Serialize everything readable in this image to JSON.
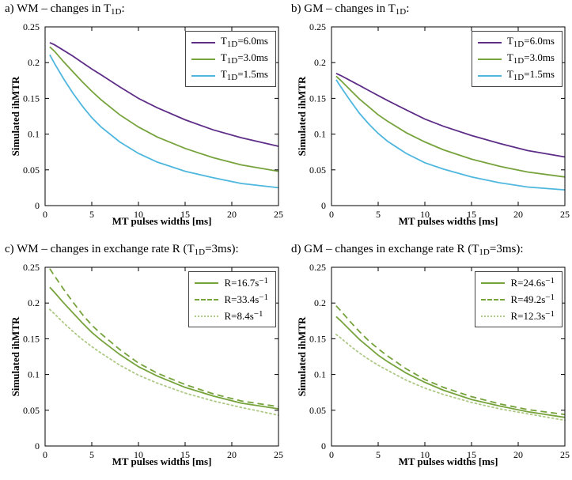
{
  "figure": {
    "background": "#ffffff",
    "axis_color": "#000000"
  },
  "chart_data": [
    {
      "id": "panel-a",
      "type": "line",
      "title": {
        "pre": "a) WM – changes in T",
        "sub": "1D",
        "post": ":"
      },
      "xlabel": "MT pulses widths [ms]",
      "ylabel": "Simulated ihMTR",
      "xlim": [
        0,
        25
      ],
      "ylim": [
        0,
        0.25
      ],
      "xticks": [
        0,
        5,
        10,
        15,
        20,
        25
      ],
      "xtick_labels": [
        "0",
        "5",
        "10",
        "15",
        "20",
        "25"
      ],
      "yticks": [
        0,
        0.05,
        0.1,
        0.15,
        0.2,
        0.25
      ],
      "ytick_labels": [
        "0",
        "0.05",
        "0.1",
        "0.15",
        "0.2",
        "0.25"
      ],
      "legend_position": "top-right",
      "grid": false,
      "x": [
        0.5,
        1,
        2,
        3,
        4,
        5,
        6,
        8,
        10,
        12,
        15,
        18,
        21,
        25
      ],
      "series": [
        {
          "label": {
            "pre": "T",
            "sub": "1D",
            "post": "=6.0ms"
          },
          "color": "#5e2d87",
          "style": "solid",
          "values": [
            0.228,
            0.225,
            0.217,
            0.209,
            0.2,
            0.191,
            0.183,
            0.166,
            0.15,
            0.137,
            0.12,
            0.106,
            0.095,
            0.083
          ]
        },
        {
          "label": {
            "pre": "T",
            "sub": "1D",
            "post": "=3.0ms"
          },
          "color": "#77a33d",
          "style": "solid",
          "values": [
            0.222,
            0.216,
            0.201,
            0.187,
            0.173,
            0.16,
            0.148,
            0.127,
            0.11,
            0.096,
            0.08,
            0.067,
            0.057,
            0.048
          ]
        },
        {
          "label": {
            "pre": "T",
            "sub": "1D",
            "post": "=1.5ms"
          },
          "color": "#4fb7de",
          "style": "solid",
          "values": [
            0.211,
            0.199,
            0.177,
            0.157,
            0.139,
            0.123,
            0.11,
            0.089,
            0.073,
            0.061,
            0.048,
            0.039,
            0.031,
            0.025
          ]
        }
      ]
    },
    {
      "id": "panel-b",
      "type": "line",
      "title": {
        "pre": "b) GM – changes in T",
        "sub": "1D",
        "post": ":"
      },
      "xlabel": "MT pulses widths [ms]",
      "ylabel": "Simulated ihMTR",
      "xlim": [
        0,
        25
      ],
      "ylim": [
        0,
        0.25
      ],
      "xticks": [
        0,
        5,
        10,
        15,
        20,
        25
      ],
      "xtick_labels": [
        "0",
        "5",
        "10",
        "15",
        "20",
        "25"
      ],
      "yticks": [
        0,
        0.05,
        0.1,
        0.15,
        0.2,
        0.25
      ],
      "ytick_labels": [
        "0",
        "0.05",
        "0.1",
        "0.15",
        "0.2",
        "0.25"
      ],
      "legend_position": "top-right",
      "grid": false,
      "x": [
        0.5,
        1,
        2,
        3,
        4,
        5,
        6,
        8,
        10,
        12,
        15,
        18,
        21,
        25
      ],
      "series": [
        {
          "label": {
            "pre": "T",
            "sub": "1D",
            "post": "=6.0ms"
          },
          "color": "#5e2d87",
          "style": "solid",
          "values": [
            0.185,
            0.182,
            0.175,
            0.168,
            0.161,
            0.154,
            0.147,
            0.134,
            0.121,
            0.111,
            0.098,
            0.087,
            0.077,
            0.068
          ]
        },
        {
          "label": {
            "pre": "T",
            "sub": "1D",
            "post": "=3.0ms"
          },
          "color": "#77a33d",
          "style": "solid",
          "values": [
            0.181,
            0.175,
            0.162,
            0.149,
            0.138,
            0.127,
            0.118,
            0.102,
            0.089,
            0.078,
            0.065,
            0.055,
            0.047,
            0.04
          ]
        },
        {
          "label": {
            "pre": "T",
            "sub": "1D",
            "post": "=1.5ms"
          },
          "color": "#4fb7de",
          "style": "solid",
          "values": [
            0.176,
            0.166,
            0.147,
            0.129,
            0.114,
            0.101,
            0.09,
            0.073,
            0.06,
            0.051,
            0.04,
            0.032,
            0.026,
            0.022
          ]
        }
      ]
    },
    {
      "id": "panel-c",
      "type": "line",
      "title": {
        "pre": "c) WM – changes in exchange rate R (T",
        "sub": "1D",
        "post": "=3ms):"
      },
      "xlabel": "MT pulses widths [ms]",
      "ylabel": "Simulated ihMTR",
      "xlim": [
        0,
        25
      ],
      "ylim": [
        0,
        0.25
      ],
      "xticks": [
        0,
        5,
        10,
        15,
        20,
        25
      ],
      "xtick_labels": [
        "0",
        "5",
        "10",
        "15",
        "20",
        "25"
      ],
      "yticks": [
        0,
        0.05,
        0.1,
        0.15,
        0.2,
        0.25
      ],
      "ytick_labels": [
        "0",
        "0.05",
        "0.1",
        "0.15",
        "0.2",
        "0.25"
      ],
      "legend_position": "top-right",
      "grid": false,
      "x": [
        0.5,
        1,
        2,
        3,
        4,
        5,
        6,
        8,
        10,
        12,
        15,
        18,
        21,
        25
      ],
      "series": [
        {
          "label": {
            "pre": "R=16.7s",
            "sup": "−1",
            "post": ""
          },
          "color": "#77a33d",
          "style": "solid",
          "values": [
            0.222,
            0.215,
            0.2,
            0.186,
            0.172,
            0.159,
            0.148,
            0.128,
            0.111,
            0.098,
            0.082,
            0.07,
            0.06,
            0.052
          ]
        },
        {
          "label": {
            "pre": "R=33.4s",
            "sup": "−1",
            "post": ""
          },
          "color": "#77a33d",
          "style": "dashed",
          "values": [
            0.248,
            0.238,
            0.219,
            0.201,
            0.184,
            0.169,
            0.157,
            0.135,
            0.116,
            0.102,
            0.086,
            0.073,
            0.063,
            0.055
          ]
        },
        {
          "label": {
            "pre": "R=8.4s",
            "sup": "−1",
            "post": ""
          },
          "color": "#aec985",
          "style": "dotted",
          "values": [
            0.191,
            0.185,
            0.172,
            0.16,
            0.149,
            0.139,
            0.13,
            0.113,
            0.099,
            0.088,
            0.074,
            0.063,
            0.054,
            0.043
          ]
        }
      ]
    },
    {
      "id": "panel-d",
      "type": "line",
      "title": {
        "pre": "d) GM – changes in exchange rate R (T",
        "sub": "1D",
        "post": "=3ms):"
      },
      "xlabel": "MT pulses widths [ms]",
      "ylabel": "Simulated ihMTR",
      "xlim": [
        0,
        25
      ],
      "ylim": [
        0,
        0.25
      ],
      "xticks": [
        0,
        5,
        10,
        15,
        20,
        25
      ],
      "xtick_labels": [
        "0",
        "5",
        "10",
        "15",
        "20",
        "25"
      ],
      "yticks": [
        0,
        0.05,
        0.1,
        0.15,
        0.2,
        0.25
      ],
      "ytick_labels": [
        "0",
        "0.05",
        "0.1",
        "0.15",
        "0.2",
        "0.25"
      ],
      "legend_position": "top-right",
      "grid": false,
      "x": [
        0.5,
        1,
        2,
        3,
        4,
        5,
        6,
        8,
        10,
        12,
        15,
        18,
        21,
        25
      ],
      "series": [
        {
          "label": {
            "pre": "R=24.6s",
            "sup": "−1",
            "post": ""
          },
          "color": "#77a33d",
          "style": "solid",
          "values": [
            0.181,
            0.175,
            0.162,
            0.149,
            0.138,
            0.127,
            0.118,
            0.102,
            0.089,
            0.078,
            0.065,
            0.056,
            0.048,
            0.04
          ]
        },
        {
          "label": {
            "pre": "R=49.2s",
            "sup": "−1",
            "post": ""
          },
          "color": "#77a33d",
          "style": "dashed",
          "values": [
            0.196,
            0.189,
            0.174,
            0.16,
            0.147,
            0.136,
            0.126,
            0.108,
            0.093,
            0.082,
            0.069,
            0.059,
            0.051,
            0.044
          ]
        },
        {
          "label": {
            "pre": "R=12.3s",
            "sup": "−1",
            "post": ""
          },
          "color": "#aec985",
          "style": "dotted",
          "values": [
            0.156,
            0.151,
            0.14,
            0.13,
            0.121,
            0.113,
            0.106,
            0.092,
            0.081,
            0.072,
            0.061,
            0.052,
            0.045,
            0.036
          ]
        }
      ]
    }
  ]
}
